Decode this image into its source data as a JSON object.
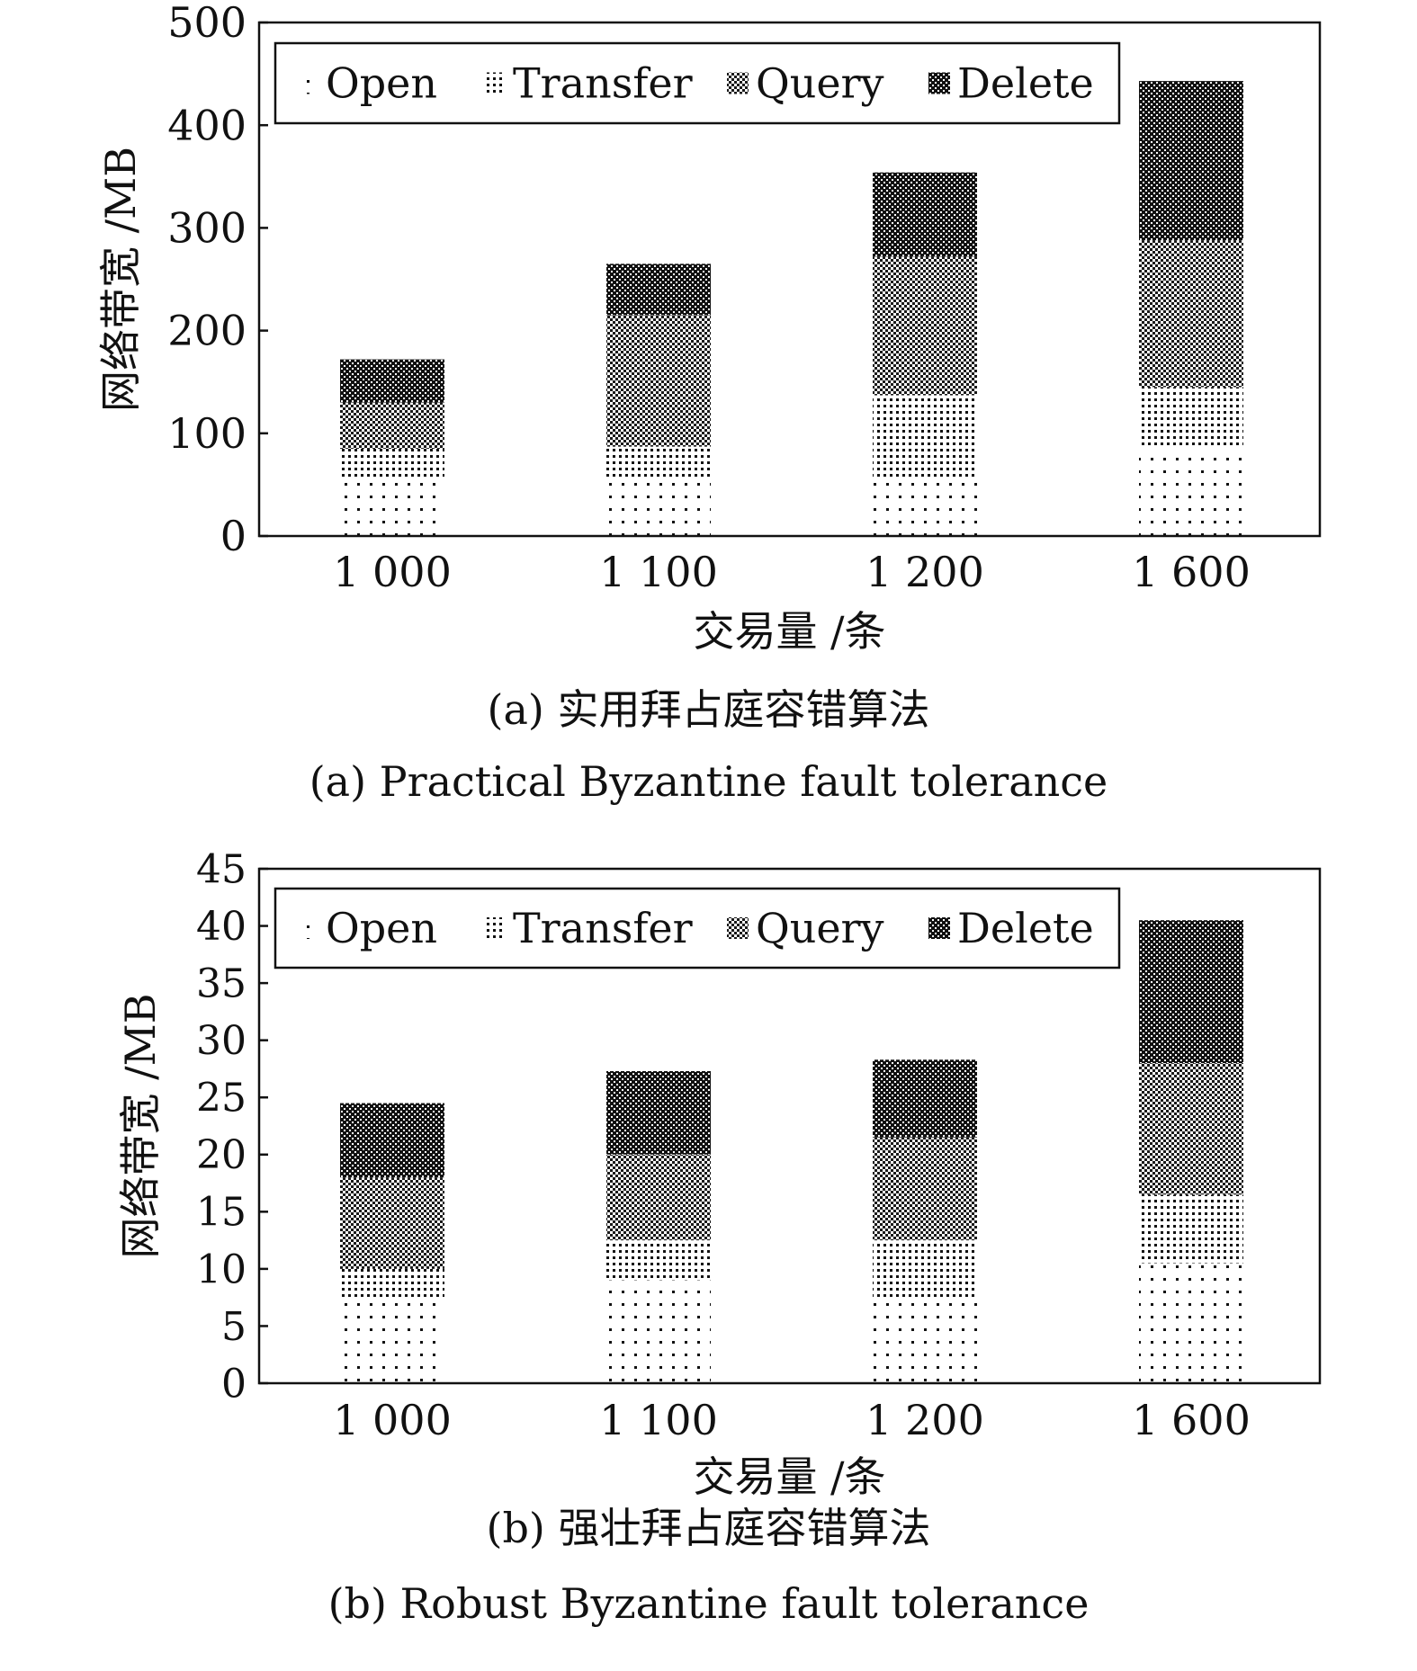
{
  "chart_data": [
    {
      "type": "bar",
      "stacked": true,
      "categories": [
        "1 000",
        "1 100",
        "1 200",
        "1 600"
      ],
      "series": [
        {
          "name": "Open",
          "values": [
            55,
            57,
            57,
            85
          ]
        },
        {
          "name": "Transfer",
          "values": [
            30,
            30,
            80,
            60
          ]
        },
        {
          "name": "Query",
          "values": [
            45,
            128,
            135,
            143
          ]
        },
        {
          "name": "Delete",
          "values": [
            42,
            50,
            82,
            155
          ]
        }
      ],
      "xlabel": "交易量 /条",
      "ylabel": "网络带宽 /MB",
      "ylim": [
        0,
        500
      ],
      "yticks": [
        "0",
        "100",
        "200",
        "300",
        "400",
        "500"
      ],
      "legend": "top",
      "caption_cn": "(a) 实用拜占庭容错算法",
      "caption_en": "(a) Practical Byzantine fault tolerance"
    },
    {
      "type": "bar",
      "stacked": true,
      "categories": [
        "1 000",
        "1 100",
        "1 200",
        "1 600"
      ],
      "series": [
        {
          "name": "Open",
          "values": [
            7.5,
            9,
            7.5,
            10.5
          ]
        },
        {
          "name": "Transfer",
          "values": [
            2.5,
            3.5,
            5,
            6
          ]
        },
        {
          "name": "Query",
          "values": [
            8,
            7.5,
            9,
            11.5
          ]
        },
        {
          "name": "Delete",
          "values": [
            6.5,
            7.3,
            6.8,
            12.5
          ]
        }
      ],
      "xlabel": "交易量 /条",
      "ylabel": "网络带宽 /MB",
      "ylim": [
        0,
        45
      ],
      "yticks": [
        "0",
        "5",
        "10",
        "15",
        "20",
        "25",
        "30",
        "35",
        "40",
        "45"
      ],
      "legend": "top",
      "caption_cn": "(b) 强壮拜占庭容错算法",
      "caption_en": "(b) Robust Byzantine fault tolerance"
    }
  ]
}
